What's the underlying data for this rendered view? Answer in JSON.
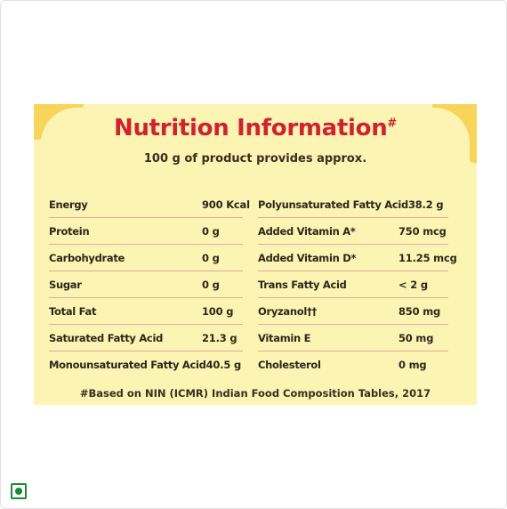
{
  "title": "Nutrition Information",
  "title_mark": "#",
  "subtitle": "100 g of product provides approx.",
  "left_rows": [
    {
      "name": "Energy",
      "value": "900 Kcal"
    },
    {
      "name": "Protein",
      "value": "0 g"
    },
    {
      "name": "Carbohydrate",
      "value": "0 g"
    },
    {
      "name": "Sugar",
      "value": "0 g"
    },
    {
      "name": "Total Fat",
      "value": "100 g"
    },
    {
      "name": "Saturated Fatty Acid",
      "value": "21.3 g"
    },
    {
      "name": "Monounsaturated Fatty Acid",
      "value": "40.5 g"
    }
  ],
  "right_rows": [
    {
      "name": "Polyunsaturated Fatty Acid",
      "value": "38.2 g"
    },
    {
      "name": "Added Vitamin A*",
      "value": "750 mcg"
    },
    {
      "name": "Added Vitamin D*",
      "value": "11.25 mcg"
    },
    {
      "name": "Trans Fatty Acid",
      "value": "< 2 g"
    },
    {
      "name": "Oryzanol††",
      "value": "850 mg"
    },
    {
      "name": "Vitamin E",
      "value": "50 mg"
    },
    {
      "name": "Cholesterol",
      "value": "0 mg"
    }
  ],
  "footnote": "#Based on NIN (ICMR) Indian Food Composition Tables, 2017",
  "colors": {
    "panel": "#fbf4b3",
    "title": "#d0222f",
    "divider": "#e9a6a0",
    "veg_mark": "#1a8a33"
  },
  "veg_mark_icon": "vegetarian-mark-icon"
}
